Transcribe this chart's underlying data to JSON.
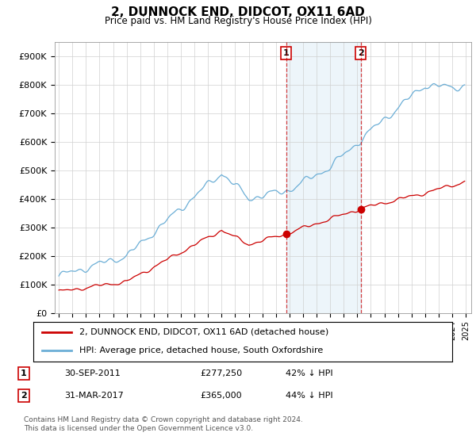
{
  "title": "2, DUNNOCK END, DIDCOT, OX11 6AD",
  "subtitle": "Price paid vs. HM Land Registry's House Price Index (HPI)",
  "ylim": [
    0,
    950000
  ],
  "yticks": [
    0,
    100000,
    200000,
    300000,
    400000,
    500000,
    600000,
    700000,
    800000,
    900000
  ],
  "ytick_labels": [
    "£0",
    "£100K",
    "£200K",
    "£300K",
    "£400K",
    "£500K",
    "£600K",
    "£700K",
    "£800K",
    "£900K"
  ],
  "hpi_color": "#6baed6",
  "sale_color": "#cc0000",
  "legend_line1": "2, DUNNOCK END, DIDCOT, OX11 6AD (detached house)",
  "legend_line2": "HPI: Average price, detached house, South Oxfordshire",
  "table_row1": [
    "1",
    "30-SEP-2011",
    "£277,250",
    "42% ↓ HPI"
  ],
  "table_row2": [
    "2",
    "31-MAR-2017",
    "£365,000",
    "44% ↓ HPI"
  ],
  "footer": "Contains HM Land Registry data © Crown copyright and database right 2024.\nThis data is licensed under the Open Government Licence v3.0.",
  "background_color": "#ffffff",
  "grid_color": "#d0d0d0",
  "start_year": 1995,
  "end_year": 2025,
  "sale1_year": 2011.75,
  "sale2_year": 2017.25,
  "sale1_value": 277250,
  "sale2_value": 365000
}
